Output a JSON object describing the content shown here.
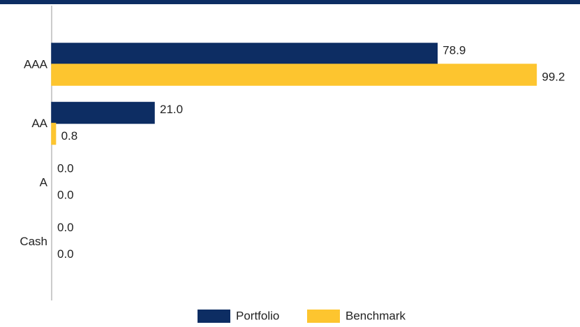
{
  "chart_data": {
    "type": "bar",
    "orientation": "horizontal",
    "categories": [
      "AAA",
      "AA",
      "A",
      "Cash"
    ],
    "series": [
      {
        "name": "Portfolio",
        "color": "#0d2d63",
        "values": [
          78.9,
          21.0,
          0.0,
          0.0
        ],
        "value_labels": [
          "78.9",
          "21.0",
          "0.0",
          "0.0"
        ]
      },
      {
        "name": "Benchmark",
        "color": "#fdc52f",
        "values": [
          99.2,
          0.8,
          0.0,
          0.0
        ],
        "value_labels": [
          "99.2",
          "0.8",
          "0.0",
          "0.0"
        ]
      }
    ],
    "legend": "bottom"
  }
}
